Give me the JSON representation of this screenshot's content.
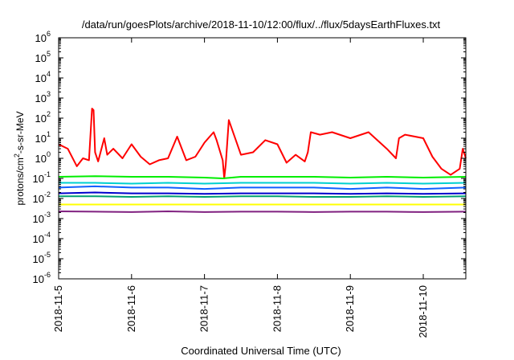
{
  "chart_data": {
    "type": "line",
    "title": "/data/run/goesPlots/archive/2018-11-10/12:00/flux/../flux/5daysEarthFluxes.txt",
    "xlabel": "Coordinated Universal Time (UTC)",
    "ylabel_parts": {
      "pre": "protons/cm",
      "sup": "2",
      "post": "-s-sr-MeV"
    },
    "x_scale": "date",
    "xlim": [
      "2018-11-05",
      "2018-11-10T14:00"
    ],
    "x_ticks": [
      "2018-11-5",
      "2018-11-6",
      "2018-11-7",
      "2018-11-8",
      "2018-11-9",
      "2018-11-10"
    ],
    "y_scale": "log",
    "ylim": [
      1e-06,
      1000000.0
    ],
    "y_ticks": [
      {
        "base": "10",
        "exp": "-6"
      },
      {
        "base": "10",
        "exp": "-5"
      },
      {
        "base": "10",
        "exp": "-4"
      },
      {
        "base": "10",
        "exp": "-3"
      },
      {
        "base": "10",
        "exp": "-2"
      },
      {
        "base": "10",
        "exp": "-1"
      },
      {
        "base": "10",
        "exp": "0"
      },
      {
        "base": "10",
        "exp": "1"
      },
      {
        "base": "10",
        "exp": "2"
      },
      {
        "base": "10",
        "exp": "3"
      },
      {
        "base": "10",
        "exp": "4"
      },
      {
        "base": "10",
        "exp": "5"
      },
      {
        "base": "10",
        "exp": "6"
      }
    ],
    "grid": false,
    "series": [
      {
        "color": "#ff0000",
        "x": [
          "2018-11-05T00:00",
          "2018-11-05T03:00",
          "2018-11-05T06:00",
          "2018-11-05T08:00",
          "2018-11-05T10:00",
          "2018-11-05T11:00",
          "2018-11-05T11:30",
          "2018-11-05T12:00",
          "2018-11-05T13:00",
          "2018-11-05T15:00",
          "2018-11-05T16:00",
          "2018-11-05T18:00",
          "2018-11-05T21:00",
          "2018-11-06T00:00",
          "2018-11-06T03:00",
          "2018-11-06T06:00",
          "2018-11-06T09:00",
          "2018-11-06T12:00",
          "2018-11-06T15:00",
          "2018-11-06T18:00",
          "2018-11-06T21:00",
          "2018-11-07T00:00",
          "2018-11-07T03:00",
          "2018-11-07T04:00",
          "2018-11-07T06:00",
          "2018-11-07T06:30",
          "2018-11-07T07:00",
          "2018-11-07T08:00",
          "2018-11-07T12:00",
          "2018-11-07T16:00",
          "2018-11-07T20:00",
          "2018-11-08T00:00",
          "2018-11-08T03:00",
          "2018-11-08T06:00",
          "2018-11-08T09:00",
          "2018-11-08T10:00",
          "2018-11-08T11:00",
          "2018-11-08T14:00",
          "2018-11-08T18:00",
          "2018-11-09T00:00",
          "2018-11-09T06:00",
          "2018-11-09T12:00",
          "2018-11-09T15:00",
          "2018-11-09T16:00",
          "2018-11-09T18:00",
          "2018-11-10T00:00",
          "2018-11-10T03:00",
          "2018-11-10T06:00",
          "2018-11-10T09:00",
          "2018-11-10T12:00",
          "2018-11-10T13:00",
          "2018-11-10T14:00"
        ],
        "y": [
          5,
          3,
          0.4,
          1,
          0.8,
          300,
          250,
          2,
          0.7,
          10,
          1.5,
          3,
          1,
          5,
          1.2,
          0.5,
          0.8,
          1,
          12,
          0.8,
          1.2,
          6,
          20,
          8,
          0.8,
          0.1,
          0.5,
          80,
          1.5,
          2,
          8,
          5,
          0.6,
          1.5,
          0.7,
          2,
          20,
          15,
          20,
          10,
          20,
          3,
          1,
          10,
          15,
          10,
          1.2,
          0.3,
          0.15,
          0.3,
          3,
          1
        ]
      },
      {
        "color": "#00ee00",
        "x": [
          "2018-11-05",
          "2018-11-05T12:00",
          "2018-11-06",
          "2018-11-06T12:00",
          "2018-11-07",
          "2018-11-07T06:00",
          "2018-11-07T12:00",
          "2018-11-08",
          "2018-11-08T12:00",
          "2018-11-09",
          "2018-11-09T12:00",
          "2018-11-10",
          "2018-11-10T14:00"
        ],
        "y": [
          0.12,
          0.13,
          0.12,
          0.12,
          0.11,
          0.1,
          0.12,
          0.12,
          0.12,
          0.11,
          0.12,
          0.11,
          0.12
        ]
      },
      {
        "color": "#00d0d0",
        "x": [
          "2018-11-05",
          "2018-11-05T12:00",
          "2018-11-06",
          "2018-11-06T12:00",
          "2018-11-07",
          "2018-11-07T12:00",
          "2018-11-08",
          "2018-11-08T12:00",
          "2018-11-09",
          "2018-11-09T12:00",
          "2018-11-10",
          "2018-11-10T14:00"
        ],
        "y": [
          0.06,
          0.06,
          0.055,
          0.06,
          0.055,
          0.06,
          0.06,
          0.06,
          0.055,
          0.06,
          0.055,
          0.06
        ]
      },
      {
        "color": "#1060ff",
        "x": [
          "2018-11-05",
          "2018-11-05T12:00",
          "2018-11-06",
          "2018-11-06T12:00",
          "2018-11-07",
          "2018-11-07T12:00",
          "2018-11-08",
          "2018-11-08T12:00",
          "2018-11-09",
          "2018-11-09T12:00",
          "2018-11-10",
          "2018-11-10T14:00"
        ],
        "y": [
          0.035,
          0.04,
          0.035,
          0.035,
          0.03,
          0.035,
          0.035,
          0.035,
          0.03,
          0.035,
          0.03,
          0.035
        ]
      },
      {
        "color": "#0000cc",
        "x": [
          "2018-11-05",
          "2018-11-05T12:00",
          "2018-11-06",
          "2018-11-06T12:00",
          "2018-11-07",
          "2018-11-07T12:00",
          "2018-11-08",
          "2018-11-08T12:00",
          "2018-11-09",
          "2018-11-09T12:00",
          "2018-11-10",
          "2018-11-10T14:00"
        ],
        "y": [
          0.018,
          0.02,
          0.018,
          0.018,
          0.017,
          0.018,
          0.018,
          0.018,
          0.017,
          0.018,
          0.017,
          0.018
        ]
      },
      {
        "color": "#00a070",
        "x": [
          "2018-11-05",
          "2018-11-05T12:00",
          "2018-11-06",
          "2018-11-06T12:00",
          "2018-11-07",
          "2018-11-07T12:00",
          "2018-11-08",
          "2018-11-08T12:00",
          "2018-11-09",
          "2018-11-09T12:00",
          "2018-11-10",
          "2018-11-10T14:00"
        ],
        "y": [
          0.013,
          0.013,
          0.012,
          0.013,
          0.012,
          0.013,
          0.013,
          0.012,
          0.012,
          0.013,
          0.012,
          0.013
        ]
      },
      {
        "color": "#ffff00",
        "x": [
          "2018-11-05",
          "2018-11-05T12:00",
          "2018-11-06",
          "2018-11-06T12:00",
          "2018-11-07",
          "2018-11-07T12:00",
          "2018-11-08",
          "2018-11-08T12:00",
          "2018-11-09",
          "2018-11-09T12:00",
          "2018-11-10",
          "2018-11-10T14:00"
        ],
        "y": [
          0.005,
          0.005,
          0.005,
          0.005,
          0.005,
          0.005,
          0.005,
          0.005,
          0.005,
          0.005,
          0.005,
          0.005
        ]
      },
      {
        "color": "#802080",
        "x": [
          "2018-11-05",
          "2018-11-05T12:00",
          "2018-11-06",
          "2018-11-06T12:00",
          "2018-11-07",
          "2018-11-07T12:00",
          "2018-11-08",
          "2018-11-08T12:00",
          "2018-11-09",
          "2018-11-09T12:00",
          "2018-11-10",
          "2018-11-10T14:00"
        ],
        "y": [
          0.0023,
          0.0022,
          0.0021,
          0.0023,
          0.0021,
          0.0022,
          0.0022,
          0.0021,
          0.0022,
          0.0022,
          0.0021,
          0.0022
        ]
      }
    ]
  }
}
